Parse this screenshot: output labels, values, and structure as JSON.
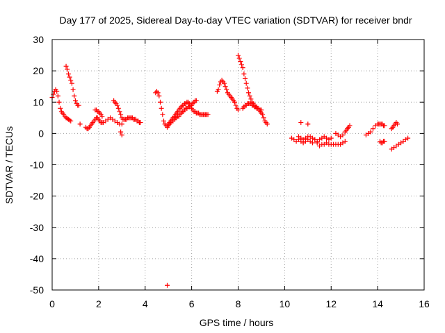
{
  "chart_data": {
    "type": "scatter",
    "title": "Day 177 of 2025, Sidereal Day-to-day VTEC variation (SDTVAR) for receiver bndr",
    "xlabel": "GPS time / hours",
    "ylabel": "SDTVAR / TECUs",
    "xlim": [
      0,
      16
    ],
    "ylim": [
      -50,
      30
    ],
    "xticks": [
      0,
      2,
      4,
      6,
      8,
      10,
      12,
      14,
      16
    ],
    "yticks": [
      30,
      20,
      10,
      0,
      -10,
      -20,
      -30,
      -40,
      -50
    ],
    "grid": true,
    "marker": "+",
    "color": "#ff0000",
    "series": [
      {
        "name": "SDTVAR",
        "x": [
          0.0,
          0.05,
          0.1,
          0.15,
          0.2,
          0.25,
          0.3,
          0.35,
          0.4,
          0.45,
          0.5,
          0.55,
          0.6,
          0.65,
          0.7,
          0.75,
          0.8,
          0.6,
          0.65,
          0.7,
          0.75,
          0.8,
          0.85,
          0.9,
          0.95,
          1.0,
          1.05,
          1.1,
          1.15,
          1.2,
          1.45,
          1.5,
          1.55,
          1.6,
          1.65,
          1.7,
          1.75,
          1.8,
          1.85,
          1.9,
          1.95,
          2.0,
          2.05,
          2.1,
          2.15,
          2.2,
          2.3,
          2.4,
          2.5,
          2.6,
          2.7,
          2.8,
          2.9,
          3.0,
          1.85,
          1.9,
          1.95,
          2.0,
          2.05,
          2.1,
          2.15,
          2.65,
          2.7,
          2.75,
          2.8,
          2.85,
          2.9,
          2.95,
          3.0,
          3.05,
          3.1,
          3.15,
          3.2,
          3.25,
          3.3,
          3.35,
          3.4,
          3.45,
          3.5,
          3.55,
          3.6,
          3.65,
          3.7,
          3.75,
          3.8,
          2.95,
          3.0,
          4.45,
          4.5,
          4.55,
          4.6,
          4.65,
          4.7,
          4.75,
          4.8,
          4.85,
          4.9,
          4.95,
          5.0,
          5.05,
          5.1,
          5.15,
          5.2,
          5.25,
          5.3,
          5.35,
          5.4,
          5.45,
          5.5,
          5.55,
          5.6,
          5.65,
          5.7,
          5.75,
          5.8,
          5.85,
          5.9,
          5.95,
          6.0,
          4.95,
          5.0,
          5.05,
          5.1,
          5.15,
          5.2,
          5.25,
          5.3,
          5.35,
          5.4,
          5.45,
          5.5,
          5.55,
          5.6,
          5.65,
          5.7,
          5.75,
          5.8,
          5.85,
          5.9,
          5.95,
          6.0,
          6.05,
          6.1,
          6.15,
          6.2,
          6.0,
          6.05,
          6.1,
          6.15,
          6.2,
          6.25,
          6.3,
          6.35,
          6.4,
          6.45,
          6.5,
          6.55,
          6.6,
          6.65,
          6.7,
          4.95,
          7.1,
          7.15,
          7.2,
          7.25,
          7.3,
          7.35,
          7.4,
          7.45,
          7.5,
          7.55,
          7.6,
          7.65,
          7.7,
          7.75,
          7.8,
          7.85,
          7.9,
          7.95,
          8.0,
          8.0,
          8.05,
          8.1,
          8.15,
          8.2,
          8.25,
          8.3,
          8.35,
          8.4,
          8.45,
          8.5,
          8.55,
          8.6,
          8.65,
          8.7,
          8.75,
          8.8,
          8.85,
          8.9,
          8.95,
          9.0,
          9.05,
          9.1,
          9.15,
          9.2,
          9.25,
          8.2,
          8.25,
          8.3,
          8.35,
          8.4,
          8.45,
          8.5,
          8.55,
          8.6,
          8.65,
          8.7,
          8.75,
          8.8,
          8.85,
          8.9,
          8.95,
          9.0,
          10.3,
          10.4,
          10.5,
          10.6,
          10.7,
          10.8,
          10.9,
          11.0,
          11.1,
          11.2,
          11.3,
          11.4,
          11.5,
          11.6,
          11.7,
          11.8,
          11.9,
          12.0,
          12.1,
          12.2,
          12.3,
          12.4,
          12.5,
          12.6,
          10.6,
          10.7,
          10.8,
          10.9,
          11.0,
          11.1,
          11.2,
          11.3,
          11.4,
          11.5,
          11.6,
          11.7,
          11.8,
          11.9,
          12.0,
          10.7,
          11.0,
          12.2,
          12.3,
          12.4,
          12.5,
          12.6,
          12.65,
          12.7,
          12.75,
          12.8,
          13.5,
          13.6,
          13.7,
          13.8,
          13.9,
          14.0,
          14.05,
          14.1,
          14.15,
          14.2,
          14.25,
          14.3,
          14.1,
          14.15,
          14.2,
          14.25,
          14.3,
          14.6,
          14.65,
          14.7,
          14.75,
          14.8,
          14.85,
          14.6,
          14.7,
          14.8,
          14.9,
          15.0,
          15.1,
          15.2,
          15.3
        ],
        "y": [
          11.5,
          12.5,
          13.5,
          14.0,
          13.5,
          12.0,
          10.0,
          8.0,
          7.0,
          6.5,
          6.0,
          5.5,
          5.0,
          4.8,
          4.5,
          4.3,
          4.0,
          21.5,
          20.5,
          19.0,
          18.0,
          17.0,
          16.0,
          14.0,
          12.0,
          10.5,
          9.5,
          9.0,
          9.0,
          3.0,
          2.0,
          1.5,
          1.5,
          2.0,
          2.5,
          3.0,
          3.5,
          4.0,
          4.5,
          5.0,
          5.0,
          4.5,
          4.0,
          3.5,
          3.5,
          3.5,
          4.0,
          4.5,
          5.0,
          4.5,
          4.0,
          3.5,
          3.0,
          3.0,
          7.5,
          7.5,
          7.0,
          7.0,
          6.5,
          6.0,
          5.5,
          10.5,
          10.0,
          9.5,
          9.0,
          8.0,
          7.0,
          6.0,
          5.0,
          4.5,
          4.5,
          4.5,
          4.5,
          5.0,
          5.0,
          5.0,
          5.0,
          5.0,
          4.5,
          4.5,
          4.5,
          4.0,
          4.0,
          3.5,
          3.5,
          0.5,
          -0.5,
          13.0,
          13.5,
          13.0,
          12.0,
          10.0,
          8.0,
          6.0,
          4.0,
          3.0,
          2.5,
          2.5,
          3.0,
          3.5,
          4.0,
          4.5,
          5.0,
          5.5,
          6.0,
          6.5,
          7.0,
          7.5,
          8.0,
          8.5,
          9.0,
          9.0,
          9.5,
          9.5,
          10.0,
          10.0,
          9.5,
          9.0,
          9.0,
          2.0,
          2.5,
          3.0,
          3.5,
          4.0,
          4.0,
          4.5,
          5.0,
          5.0,
          5.5,
          5.5,
          6.0,
          6.5,
          7.0,
          7.0,
          7.5,
          8.0,
          8.0,
          8.5,
          8.5,
          9.0,
          9.0,
          9.5,
          10.0,
          10.5,
          10.5,
          8.0,
          7.5,
          7.0,
          7.0,
          6.5,
          6.5,
          6.5,
          6.0,
          6.0,
          6.0,
          6.0,
          6.0,
          6.0,
          6.0,
          6.0,
          -48.5,
          13.5,
          14.0,
          15.5,
          16.5,
          17.0,
          16.5,
          16.0,
          15.0,
          14.0,
          13.0,
          12.5,
          12.0,
          11.5,
          11.0,
          10.5,
          10.0,
          9.0,
          8.0,
          7.5,
          25.0,
          24.0,
          23.0,
          22.0,
          21.0,
          19.0,
          17.5,
          16.0,
          14.5,
          13.0,
          12.0,
          11.0,
          10.0,
          9.5,
          9.0,
          8.5,
          8.5,
          8.0,
          7.5,
          7.0,
          6.5,
          6.0,
          5.0,
          4.0,
          3.5,
          3.0,
          8.0,
          8.5,
          9.0,
          9.0,
          9.5,
          9.5,
          9.5,
          9.5,
          9.0,
          9.0,
          8.5,
          8.5,
          8.0,
          8.0,
          7.5,
          7.5,
          7.5,
          -1.5,
          -2.0,
          -2.5,
          -2.0,
          -2.5,
          -3.0,
          -2.5,
          -2.0,
          -2.5,
          -3.0,
          -2.0,
          -3.0,
          -4.0,
          -3.5,
          -3.5,
          -3.0,
          -3.5,
          -3.5,
          -3.5,
          -3.5,
          -3.5,
          -3.5,
          -3.0,
          -2.5,
          -1.0,
          -1.5,
          -2.0,
          -1.5,
          -1.0,
          -1.0,
          -1.5,
          -2.0,
          -2.5,
          -2.0,
          -1.5,
          -1.0,
          -1.5,
          -2.0,
          -1.5,
          3.5,
          3.0,
          0.0,
          -0.5,
          -1.0,
          -0.5,
          0.5,
          1.0,
          1.5,
          2.0,
          2.5,
          -0.5,
          0.0,
          0.5,
          1.5,
          2.5,
          3.0,
          3.0,
          3.0,
          3.0,
          3.0,
          2.5,
          2.5,
          -2.5,
          -3.0,
          -3.0,
          -2.5,
          -2.5,
          1.5,
          2.0,
          2.5,
          3.0,
          3.5,
          3.0,
          -5.0,
          -4.5,
          -4.0,
          -3.5,
          -3.0,
          -2.5,
          -2.0,
          -1.5
        ]
      }
    ]
  }
}
